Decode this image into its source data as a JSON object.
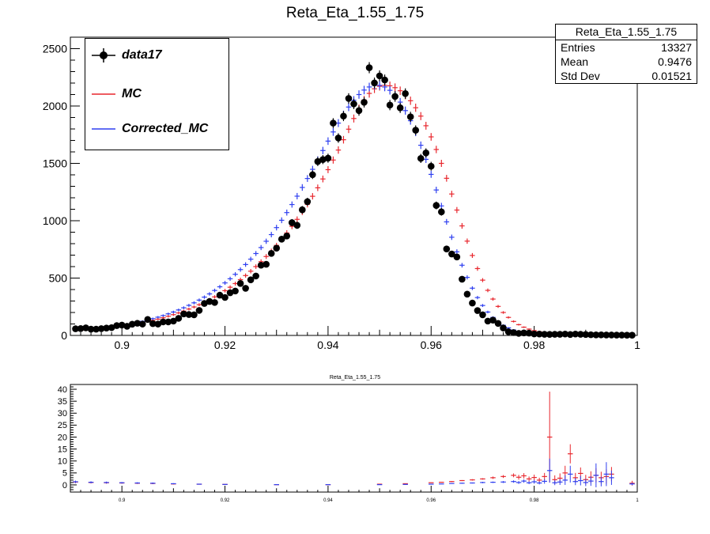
{
  "main_title": "Reta_Eta_1.55_1.75",
  "ratio_title": "Reta_Eta_1.55_1.75",
  "stats_box": {
    "name": "Reta_Eta_1.55_1.75",
    "entries_label": "Entries",
    "entries_value": "13327",
    "mean_label": "Mean",
    "mean_value": "0.9476",
    "stddev_label": "Std Dev",
    "stddev_value": "0.01521"
  },
  "legend": [
    {
      "label": "data17",
      "color": "#000000",
      "marker": "circle"
    },
    {
      "label": "MC",
      "color": "#e8262d",
      "marker": "cross"
    },
    {
      "label": "Corrected_MC",
      "color": "#2e3ff0",
      "marker": "cross"
    }
  ],
  "colors": {
    "data": "#000000",
    "mc": "#e8262d",
    "corrected_mc": "#2e3ff0"
  },
  "chart_data": [
    {
      "type": "scatter",
      "title": "Reta_Eta_1.55_1.75",
      "xlim": [
        0.89,
        1.0
      ],
      "ylim": [
        0,
        2600
      ],
      "x_ticks": [
        0.9,
        0.92,
        0.94,
        0.96,
        0.98,
        1.0
      ],
      "x_tick_labels": [
        "0.9",
        "0.92",
        "0.94",
        "0.96",
        "0.98",
        "1"
      ],
      "y_ticks": [
        0,
        500,
        1000,
        1500,
        2000,
        2500
      ],
      "y_tick_labels": [
        "0",
        "500",
        "1000",
        "1500",
        "2000",
        "2500"
      ],
      "legend_position": "top-left",
      "x": [
        0.891,
        0.892,
        0.893,
        0.894,
        0.895,
        0.896,
        0.897,
        0.898,
        0.899,
        0.9,
        0.901,
        0.902,
        0.903,
        0.904,
        0.905,
        0.906,
        0.907,
        0.908,
        0.909,
        0.91,
        0.911,
        0.912,
        0.913,
        0.914,
        0.915,
        0.916,
        0.917,
        0.918,
        0.919,
        0.92,
        0.921,
        0.922,
        0.923,
        0.924,
        0.925,
        0.926,
        0.927,
        0.928,
        0.929,
        0.93,
        0.931,
        0.932,
        0.933,
        0.934,
        0.935,
        0.936,
        0.937,
        0.938,
        0.939,
        0.94,
        0.941,
        0.942,
        0.943,
        0.944,
        0.945,
        0.946,
        0.947,
        0.948,
        0.949,
        0.95,
        0.951,
        0.952,
        0.953,
        0.954,
        0.955,
        0.956,
        0.957,
        0.958,
        0.959,
        0.96,
        0.961,
        0.962,
        0.963,
        0.964,
        0.965,
        0.966,
        0.967,
        0.968,
        0.969,
        0.97,
        0.971,
        0.972,
        0.973,
        0.974,
        0.975,
        0.976,
        0.977,
        0.978,
        0.979,
        0.98,
        0.981,
        0.982,
        0.983,
        0.984,
        0.985,
        0.986,
        0.987,
        0.988,
        0.989,
        0.99,
        0.991,
        0.992,
        0.993,
        0.994,
        0.995,
        0.996,
        0.997,
        0.998,
        0.999
      ],
      "series": [
        {
          "name": "data17",
          "marker": "circle",
          "color": "#000000",
          "values": [
            58,
            60,
            66,
            55,
            55,
            59,
            64,
            68,
            86,
            90,
            80,
            98,
            106,
            99,
            139,
            103,
            99,
            118,
            118,
            125,
            149,
            187,
            182,
            180,
            218,
            279,
            296,
            287,
            351,
            331,
            372,
            387,
            453,
            411,
            485,
            518,
            612,
            620,
            715,
            761,
            839,
            867,
            983,
            960,
            1095,
            1166,
            1401,
            1516,
            1533,
            1545,
            1851,
            1721,
            1912,
            2066,
            2018,
            1960,
            2032,
            2334,
            2201,
            2263,
            2227,
            2008,
            2083,
            1984,
            2108,
            1906,
            1789,
            1543,
            1591,
            1475,
            1133,
            1077,
            754,
            710,
            684,
            490,
            360,
            282,
            217,
            180,
            125,
            133,
            105,
            65,
            32,
            25,
            18,
            22,
            20,
            13,
            12,
            10,
            9,
            10,
            10,
            12,
            8,
            12,
            10,
            8,
            6,
            5,
            5,
            4,
            4,
            3,
            3,
            2,
            2
          ]
        },
        {
          "name": "MC",
          "marker": "cross",
          "color": "#e8262d",
          "values": [
            42,
            44,
            47,
            50,
            54,
            58,
            63,
            68,
            74,
            80,
            87,
            95,
            103,
            112,
            121,
            131,
            142,
            154,
            167,
            181,
            196,
            212,
            230,
            248,
            268,
            289,
            312,
            336,
            362,
            390,
            420,
            452,
            486,
            522,
            560,
            600,
            643,
            688,
            735,
            785,
            838,
            893,
            951,
            1012,
            1076,
            1143,
            1213,
            1287,
            1364,
            1445,
            1529,
            1616,
            1706,
            1798,
            1891,
            1977,
            2052,
            2110,
            2150,
            2172,
            2180,
            2176,
            2160,
            2133,
            2095,
            2046,
            1985,
            1912,
            1828,
            1731,
            1621,
            1500,
            1370,
            1233,
            1093,
            955,
            822,
            697,
            583,
            482,
            393,
            317,
            253,
            200,
            157,
            122,
            94,
            72,
            55,
            42,
            32,
            24,
            18,
            14,
            11,
            8,
            6,
            5,
            4,
            3,
            3,
            2,
            2,
            2,
            1,
            1,
            1,
            1,
            1
          ]
        },
        {
          "name": "Corrected_MC",
          "marker": "cross",
          "color": "#2e3ff0",
          "values": [
            45,
            48,
            51,
            55,
            59,
            64,
            69,
            75,
            81,
            88,
            96,
            104,
            113,
            123,
            134,
            146,
            159,
            173,
            188,
            204,
            222,
            241,
            262,
            284,
            308,
            334,
            362,
            392,
            424,
            458,
            494,
            533,
            574,
            618,
            665,
            714,
            766,
            821,
            879,
            940,
            1004,
            1071,
            1141,
            1214,
            1290,
            1368,
            1448,
            1530,
            1612,
            1694,
            1774,
            1851,
            1924,
            1991,
            2050,
            2100,
            2139,
            2166,
            2180,
            2180,
            2166,
            2137,
            2093,
            2034,
            1960,
            1872,
            1771,
            1658,
            1535,
            1404,
            1268,
            1129,
            990,
            856,
            729,
            612,
            506,
            412,
            330,
            261,
            204,
            157,
            119,
            89,
            66,
            48,
            35,
            25,
            18,
            13,
            9,
            6,
            4,
            3,
            2,
            2,
            1,
            1,
            1,
            1,
            1,
            1,
            1,
            1,
            1,
            1,
            1,
            1,
            1
          ]
        }
      ]
    },
    {
      "type": "scatter",
      "title": "Reta_Eta_1.55_1.75",
      "xlim": [
        0.89,
        1.0
      ],
      "ylim": [
        -3,
        42
      ],
      "x_ticks": [
        0.9,
        0.92,
        0.94,
        0.96,
        0.98,
        1.0
      ],
      "x_tick_labels": [
        "0.9",
        "0.92",
        "0.94",
        "0.96",
        "0.98",
        "1"
      ],
      "y_ticks": [
        0,
        5,
        10,
        15,
        20,
        25,
        30,
        35,
        40
      ],
      "y_tick_labels": [
        "0",
        "5",
        "10",
        "15",
        "20",
        "25",
        "30",
        "35",
        "40"
      ],
      "series": [
        {
          "name": "MC",
          "color": "#e8262d",
          "x": [
            0.891,
            0.894,
            0.897,
            0.9,
            0.903,
            0.906,
            0.91,
            0.915,
            0.92,
            0.93,
            0.94,
            0.95,
            0.955,
            0.96,
            0.962,
            0.964,
            0.966,
            0.968,
            0.97,
            0.972,
            0.974,
            0.976,
            0.977,
            0.978,
            0.979,
            0.98,
            0.981,
            0.982,
            0.983,
            0.984,
            0.985,
            0.986,
            0.987,
            0.988,
            0.989,
            0.99,
            0.991,
            0.992,
            0.993,
            0.994,
            0.995,
            0.999
          ],
          "values": [
            1.2,
            1.0,
            0.9,
            0.8,
            0.7,
            0.6,
            0.4,
            0.3,
            0.2,
            0.1,
            0.1,
            0.3,
            0.5,
            0.9,
            1.1,
            1.4,
            1.8,
            2.1,
            2.5,
            3.0,
            3.5,
            4.0,
            3.2,
            3.8,
            2.5,
            3.1,
            2.0,
            3.5,
            20.0,
            2.2,
            2.8,
            5.0,
            13.0,
            3.0,
            4.8,
            2.2,
            3.2,
            4.0,
            3.0,
            3.5,
            4.5,
            0.7
          ],
          "errors": [
            0.5,
            0.4,
            0.4,
            0.3,
            0.3,
            0.3,
            0.2,
            0.1,
            0.1,
            0.05,
            0.05,
            0.05,
            0.05,
            0.1,
            0.1,
            0.2,
            0.2,
            0.3,
            0.3,
            0.5,
            0.6,
            0.8,
            1.0,
            1.1,
            1.0,
            1.2,
            1.0,
            1.5,
            19.0,
            1.8,
            2.0,
            3.0,
            4.0,
            2.0,
            2.5,
            2.0,
            2.5,
            3.0,
            2.5,
            3.0,
            3.0,
            1.0
          ]
        },
        {
          "name": "Corrected_MC",
          "color": "#2e3ff0",
          "x": [
            0.891,
            0.894,
            0.897,
            0.9,
            0.903,
            0.906,
            0.91,
            0.915,
            0.92,
            0.93,
            0.94,
            0.95,
            0.955,
            0.96,
            0.962,
            0.964,
            0.966,
            0.968,
            0.97,
            0.972,
            0.974,
            0.976,
            0.977,
            0.978,
            0.979,
            0.98,
            0.981,
            0.982,
            0.983,
            0.984,
            0.985,
            0.986,
            0.987,
            0.988,
            0.989,
            0.99,
            0.991,
            0.992,
            0.993,
            0.994,
            0.995,
            0.999
          ],
          "values": [
            1.3,
            1.1,
            1.0,
            0.9,
            0.8,
            0.7,
            0.5,
            0.3,
            0.2,
            0.1,
            0.1,
            0.1,
            0.2,
            0.3,
            0.4,
            0.6,
            0.7,
            0.8,
            1.0,
            1.1,
            1.2,
            1.4,
            1.0,
            1.6,
            0.9,
            1.3,
            0.8,
            1.5,
            6.0,
            0.9,
            1.2,
            2.0,
            4.5,
            1.4,
            1.8,
            1.0,
            1.6,
            4.0,
            1.4,
            4.5,
            3.0,
            0.4
          ],
          "errors": [
            0.5,
            0.4,
            0.4,
            0.3,
            0.3,
            0.3,
            0.2,
            0.1,
            0.1,
            0.05,
            0.05,
            0.05,
            0.05,
            0.1,
            0.1,
            0.1,
            0.2,
            0.2,
            0.3,
            0.3,
            0.4,
            0.5,
            0.6,
            0.7,
            0.6,
            0.8,
            0.6,
            1.0,
            5.0,
            1.0,
            1.2,
            2.0,
            3.5,
            1.5,
            2.0,
            1.5,
            2.0,
            5.0,
            2.0,
            5.0,
            3.0,
            0.5
          ]
        }
      ]
    }
  ]
}
